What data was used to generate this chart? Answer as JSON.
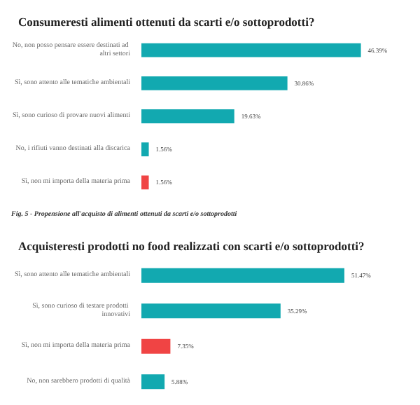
{
  "chart_data": [
    {
      "type": "bar",
      "orientation": "horizontal",
      "title": "Consumeresti alimenti ottenuti da scarti e/o sottoprodotti?",
      "categories": [
        "No, non posso pensare essere destinati ad altri settori",
        "Sì, sono attento alle tematiche ambientali",
        "Sì, sono curioso di provare nuovi alimenti",
        "No, i rifiuti vanno destinati alla discarica",
        "Sì, non mi importa della materia prima"
      ],
      "values": [
        46.39,
        30.86,
        19.63,
        1.56,
        1.56
      ],
      "value_labels": [
        "46.39%",
        "30.86%",
        "19.63%",
        "1.56%",
        "1.56%"
      ],
      "colors": [
        "#12a9b0",
        "#12a9b0",
        "#12a9b0",
        "#12a9b0",
        "#f04444"
      ],
      "annotations": [
        "Fig. 5 - Propensione all'acquisto di alimenti ottenuti da scarti e/o sottoprodotti"
      ]
    },
    {
      "type": "bar",
      "orientation": "horizontal",
      "title": "Acquisteresti prodotti no food realizzati con scarti e/o sottoprodotti?",
      "categories": [
        "Sì, sono attento alle tematiche ambientali",
        "Sì, sono curioso di testare prodotti innovativi",
        "Sì, non mi importa della materia prima",
        "No, non sarebbero prodotti di qualità"
      ],
      "values": [
        51.47,
        35.29,
        7.35,
        5.88
      ],
      "value_labels": [
        "51.47%",
        "35.29%",
        "7.35%",
        "5.88%"
      ],
      "colors": [
        "#12a9b0",
        "#12a9b0",
        "#f04444",
        "#12a9b0"
      ]
    }
  ]
}
